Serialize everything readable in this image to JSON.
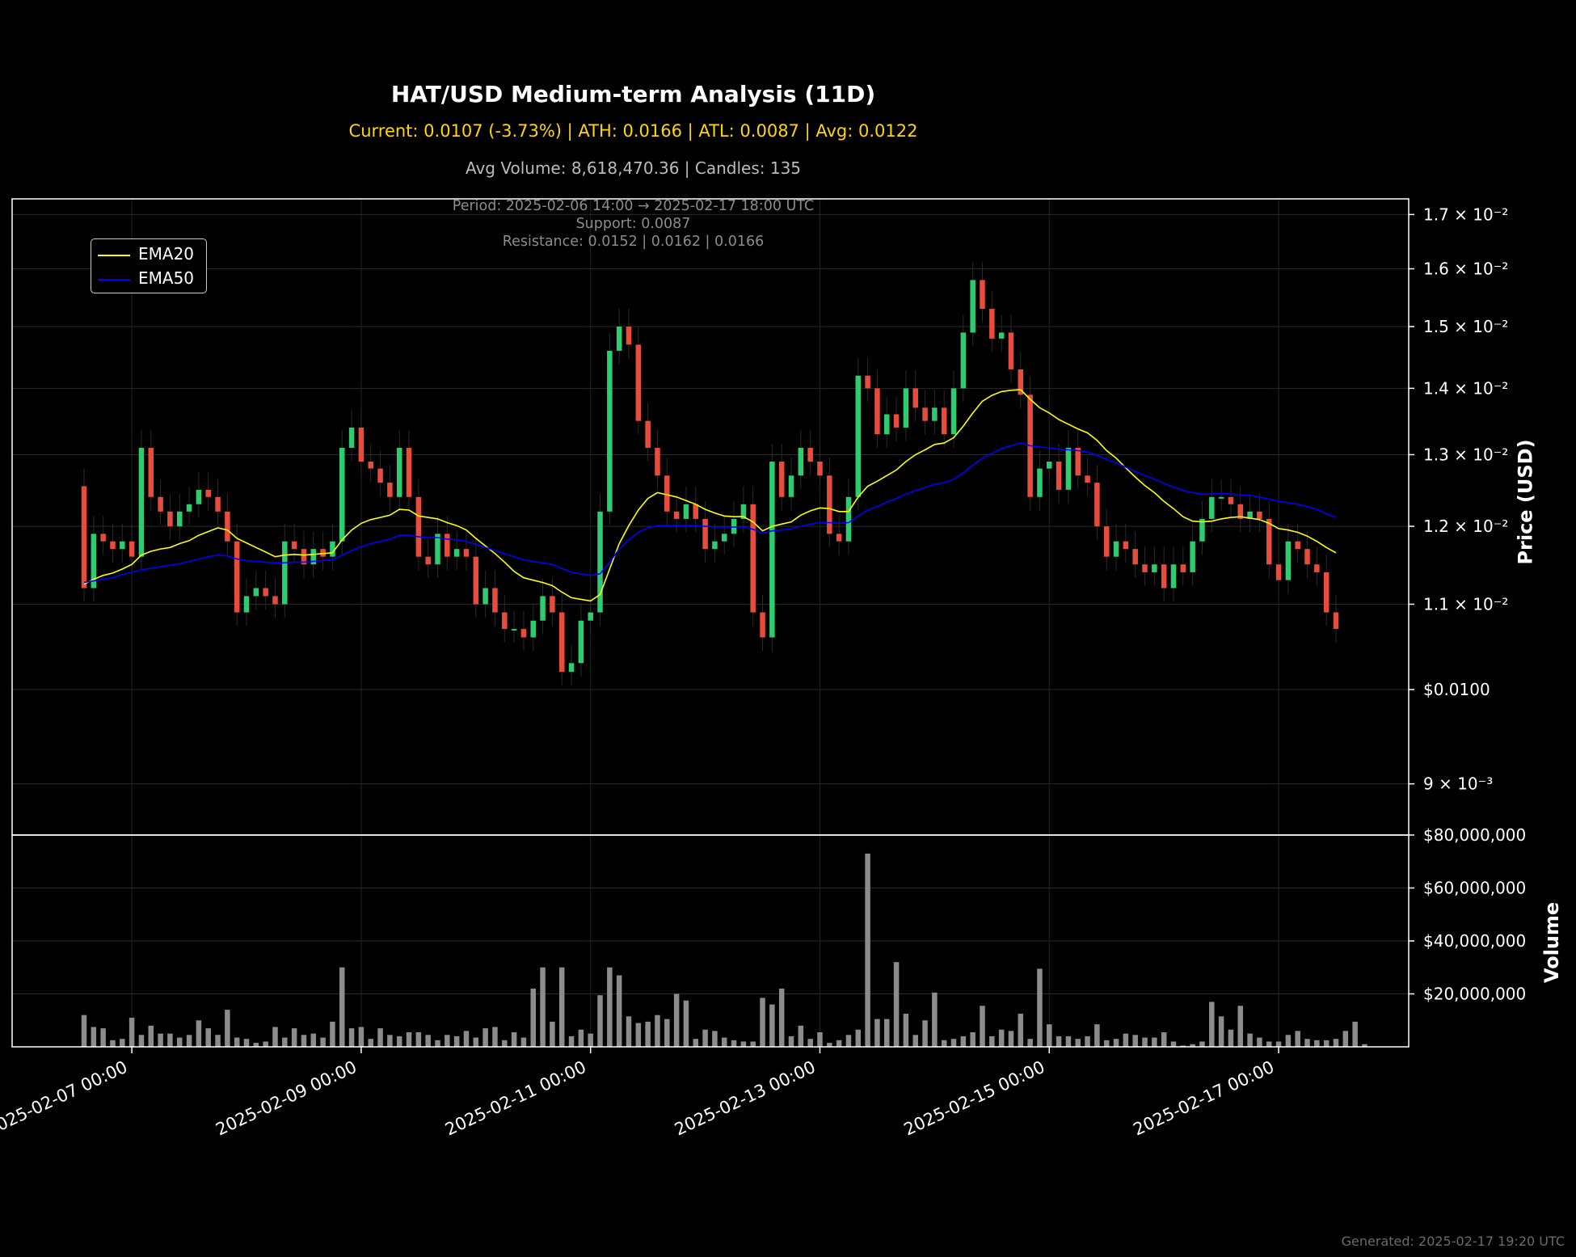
{
  "header": {
    "title": "HAT/USD Medium-term Analysis (11D)",
    "stats": "Current: 0.0107 (-3.73%) | ATH: 0.0166 | ATL: 0.0087 | Avg: 0.0122",
    "volume_info": "Avg Volume: 8,618,470.36 | Candles: 135"
  },
  "info": {
    "period": "Period: 2025-02-06 14:00 → 2025-02-17 18:00 UTC",
    "support": "Support: 0.0087",
    "resistance": "Resistance: 0.0152 | 0.0162 | 0.0166"
  },
  "footer": "Generated: 2025-02-17 19:20 UTC",
  "colors": {
    "background": "#000000",
    "up": "#2ecc71",
    "down": "#e74c3c",
    "ema20": "#ffff00",
    "ema50": "#0000ff",
    "volume": "#8c8c8c",
    "grid": "#2a2a2a"
  },
  "chart_data": [
    {
      "type": "candlestick",
      "title": "HAT/USD Medium-term Analysis (11D)",
      "ylabel": "Price (USD)",
      "yscale": "log",
      "ylim": [
        0.0085,
        0.0173
      ],
      "grid": true,
      "legend": "top-left",
      "y_tick_labels": [
        "1.7 × 10⁻²",
        "1.6 × 10⁻²",
        "1.5 × 10⁻²",
        "1.4 × 10⁻²",
        "1.3 × 10⁻²",
        "1.2 × 10⁻²",
        "1.1 × 10⁻²",
        "$0.0100",
        "9 × 10⁻³"
      ],
      "y_tick_values": [
        0.017,
        0.016,
        0.015,
        0.014,
        0.013,
        0.012,
        0.011,
        0.01,
        0.009
      ],
      "x_tick_labels": [
        "2025-02-07 00:00",
        "2025-02-09 00:00",
        "2025-02-11 00:00",
        "2025-02-13 00:00",
        "2025-02-15 00:00",
        "2025-02-17 00:00"
      ],
      "x_range": [
        "2025-02-06 14:00",
        "2025-02-17 18:00"
      ],
      "closes": [
        0.0112,
        0.0119,
        0.0118,
        0.0117,
        0.0118,
        0.0116,
        0.0131,
        0.0124,
        0.0122,
        0.012,
        0.0122,
        0.0123,
        0.0125,
        0.0124,
        0.0122,
        0.0118,
        0.0109,
        0.0111,
        0.0112,
        0.0111,
        0.011,
        0.0118,
        0.0117,
        0.0115,
        0.0117,
        0.0116,
        0.0118,
        0.0131,
        0.0134,
        0.0129,
        0.0128,
        0.0126,
        0.0124,
        0.0131,
        0.0124,
        0.0116,
        0.0115,
        0.0119,
        0.0116,
        0.0117,
        0.0116,
        0.011,
        0.0112,
        0.0109,
        0.0107,
        0.0107,
        0.0106,
        0.0108,
        0.0111,
        0.0109,
        0.0102,
        0.0103,
        0.0108,
        0.0109,
        0.0122,
        0.0146,
        0.015,
        0.0147,
        0.0135,
        0.0131,
        0.0127,
        0.0122,
        0.0121,
        0.0123,
        0.0121,
        0.0117,
        0.0118,
        0.0119,
        0.0121,
        0.0123,
        0.0109,
        0.0106,
        0.0129,
        0.0124,
        0.0127,
        0.0131,
        0.0129,
        0.0127,
        0.0119,
        0.0118,
        0.0124,
        0.0142,
        0.014,
        0.0133,
        0.0136,
        0.0134,
        0.014,
        0.0137,
        0.0135,
        0.0137,
        0.0133,
        0.014,
        0.0149,
        0.0158,
        0.0153,
        0.0148,
        0.0149,
        0.0143,
        0.0139,
        0.0124,
        0.0128,
        0.0129,
        0.0125,
        0.0131,
        0.0127,
        0.0126,
        0.012,
        0.0116,
        0.0118,
        0.0117,
        0.0115,
        0.0114,
        0.0115,
        0.0112,
        0.0115,
        0.0114,
        0.0118,
        0.0121,
        0.0124,
        0.0124,
        0.0123,
        0.0121,
        0.0122,
        0.0121,
        0.0115,
        0.0113,
        0.0118,
        0.0117,
        0.0115,
        0.0114,
        0.0109,
        0.0107
      ],
      "ema20": [
        0.01125,
        0.01131,
        0.01136,
        0.01139,
        0.01144,
        0.0115,
        0.01162,
        0.01167,
        0.0117,
        0.01172,
        0.01177,
        0.01181,
        0.01188,
        0.01193,
        0.01198,
        0.01195,
        0.01184,
        0.01178,
        0.01172,
        0.01166,
        0.0116,
        0.01162,
        0.01163,
        0.01162,
        0.01163,
        0.01164,
        0.01165,
        0.01182,
        0.01195,
        0.01204,
        0.01209,
        0.01212,
        0.01215,
        0.01223,
        0.01222,
        0.01214,
        0.01212,
        0.0121,
        0.01205,
        0.01201,
        0.01195,
        0.01184,
        0.01174,
        0.01164,
        0.01153,
        0.01141,
        0.01133,
        0.0113,
        0.01127,
        0.01123,
        0.01115,
        0.01108,
        0.01106,
        0.01104,
        0.01112,
        0.01144,
        0.01177,
        0.01201,
        0.01222,
        0.01238,
        0.01246,
        0.01243,
        0.0124,
        0.01235,
        0.0123,
        0.01223,
        0.01218,
        0.01214,
        0.01213,
        0.01213,
        0.01206,
        0.01194,
        0.012,
        0.01203,
        0.01206,
        0.01215,
        0.01221,
        0.01225,
        0.01224,
        0.0122,
        0.0122,
        0.0124,
        0.01255,
        0.01262,
        0.0127,
        0.01278,
        0.0129,
        0.013,
        0.01307,
        0.01315,
        0.01317,
        0.01325,
        0.01342,
        0.01362,
        0.0138,
        0.01389,
        0.01395,
        0.01397,
        0.01398,
        0.01383,
        0.0137,
        0.01362,
        0.01352,
        0.01345,
        0.01338,
        0.01332,
        0.01321,
        0.01306,
        0.01295,
        0.01281,
        0.01268,
        0.01256,
        0.01246,
        0.01234,
        0.01224,
        0.01213,
        0.01207,
        0.01206,
        0.01207,
        0.0121,
        0.01212,
        0.01213,
        0.01211,
        0.01209,
        0.01204,
        0.01197,
        0.01195,
        0.01192,
        0.01187,
        0.0118,
        0.01172,
        0.01165
      ],
      "ema50": [
        0.01127,
        0.01129,
        0.01131,
        0.01133,
        0.01137,
        0.0114,
        0.01143,
        0.01145,
        0.01147,
        0.01149,
        0.01151,
        0.01154,
        0.01157,
        0.0116,
        0.01162,
        0.01161,
        0.01157,
        0.01155,
        0.01154,
        0.01153,
        0.01152,
        0.01152,
        0.01153,
        0.01153,
        0.01154,
        0.01155,
        0.01156,
        0.01162,
        0.01168,
        0.01173,
        0.01177,
        0.0118,
        0.01183,
        0.01188,
        0.01188,
        0.01186,
        0.01185,
        0.01185,
        0.01183,
        0.01182,
        0.0118,
        0.01176,
        0.01172,
        0.01168,
        0.01164,
        0.0116,
        0.01156,
        0.01154,
        0.01152,
        0.0115,
        0.01145,
        0.0114,
        0.01138,
        0.01136,
        0.01138,
        0.01153,
        0.0117,
        0.01182,
        0.01192,
        0.01198,
        0.01201,
        0.01201,
        0.01201,
        0.01201,
        0.01201,
        0.012,
        0.01199,
        0.01199,
        0.01199,
        0.01199,
        0.01196,
        0.01191,
        0.01194,
        0.01195,
        0.01197,
        0.012,
        0.01203,
        0.01205,
        0.01205,
        0.01204,
        0.01205,
        0.01214,
        0.01222,
        0.01227,
        0.01233,
        0.01238,
        0.01244,
        0.01249,
        0.01253,
        0.01258,
        0.0126,
        0.01265,
        0.01274,
        0.01285,
        0.01295,
        0.01302,
        0.01309,
        0.01313,
        0.01317,
        0.01313,
        0.01311,
        0.0131,
        0.01308,
        0.01307,
        0.01306,
        0.01304,
        0.01299,
        0.01293,
        0.01288,
        0.01282,
        0.01276,
        0.0127,
        0.01265,
        0.01259,
        0.01254,
        0.01249,
        0.01246,
        0.01244,
        0.01244,
        0.01245,
        0.01244,
        0.01243,
        0.01242,
        0.0124,
        0.01237,
        0.01234,
        0.01232,
        0.0123,
        0.01227,
        0.01223,
        0.01217,
        0.01212
      ]
    },
    {
      "type": "bar",
      "title": "",
      "ylabel": "Volume",
      "ylim": [
        0,
        80000000
      ],
      "y_tick_labels": [
        "$80,000,000",
        "$60,000,000",
        "$40,000,000",
        "$20,000,000"
      ],
      "y_tick_values": [
        80000000,
        60000000,
        40000000,
        20000000
      ],
      "values": [
        12000000,
        7500000,
        7000000,
        2500000,
        3000000,
        11000000,
        4500000,
        8000000,
        5000000,
        5000000,
        3500000,
        4500000,
        10000000,
        7000000,
        4500000,
        14000000,
        3500000,
        3000000,
        1500000,
        2000000,
        7500000,
        3500000,
        7000000,
        4500000,
        5000000,
        3500000,
        9500000,
        30000000,
        7000000,
        7500000,
        3000000,
        7000000,
        4500000,
        4000000,
        5500000,
        5500000,
        4500000,
        2500000,
        4500000,
        4000000,
        6000000,
        3500000,
        7000000,
        7500000,
        2500000,
        5500000,
        3500000,
        22000000,
        30000000,
        9500000,
        30000000,
        4000000,
        6500000,
        5000000,
        19500000,
        30000000,
        27000000,
        11500000,
        9000000,
        9500000,
        12000000,
        10500000,
        20000000,
        17500000,
        3000000,
        6500000,
        6000000,
        3500000,
        2500000,
        2000000,
        2000000,
        18500000,
        16000000,
        22000000,
        4000000,
        8000000,
        3000000,
        5500000,
        1500000,
        2500000,
        4500000,
        6500000,
        73000000,
        10500000,
        10500000,
        32000000,
        12500000,
        4500000,
        10000000,
        20500000,
        2500000,
        3000000,
        4000000,
        5500000,
        15500000,
        4000000,
        6500000,
        6000000,
        12500000,
        3000000,
        29500000,
        8500000,
        4000000,
        4000000,
        3000000,
        4000000,
        8500000,
        2500000,
        3000000,
        5000000,
        4500000,
        3500000,
        3500000,
        5500000,
        2000000,
        500000,
        1000000,
        2000000,
        17000000,
        11500000,
        6500000,
        15500000,
        5000000,
        3500000,
        2000000,
        2000000,
        4500000,
        6000000,
        3000000,
        2500000,
        2500000,
        3000000,
        6000000,
        9500000,
        1000000
      ]
    }
  ],
  "legend": {
    "items": [
      {
        "label": "EMA20",
        "color": "#ffff00"
      },
      {
        "label": "EMA50",
        "color": "#0000ff"
      }
    ]
  }
}
